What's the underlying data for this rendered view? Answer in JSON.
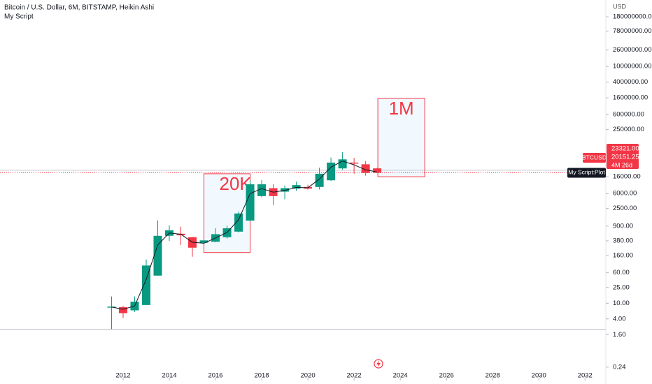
{
  "chart_data": {
    "type": "candlestick",
    "title": "Bitcoin / U.S. Dollar, 6M, BITSTAMP, Heikin Ashi",
    "subtitle": "My Script",
    "currency": "USD",
    "log_scale": true,
    "up_color": "#089981",
    "down_color": "#f23645",
    "x": [
      2011.5,
      2012.0,
      2012.5,
      2013.0,
      2013.5,
      2014.0,
      2014.5,
      2015.0,
      2015.5,
      2016.0,
      2016.5,
      2017.0,
      2017.5,
      2018.0,
      2018.5,
      2019.0,
      2019.5,
      2020.0,
      2020.5,
      2021.0,
      2021.5,
      2022.0,
      2022.5,
      2023.0
    ],
    "open": [
      8,
      7.9,
      6.6,
      9,
      50,
      509,
      575,
      470,
      340,
      360,
      470,
      650,
      1240,
      5170,
      8200,
      6700,
      8000,
      8800,
      8800,
      13000,
      26000,
      36500,
      33000,
      26000
    ],
    "high": [
      14.8,
      8.6,
      14.8,
      128,
      1250,
      940,
      870,
      480,
      420,
      790,
      920,
      2100,
      13000,
      13000,
      10500,
      9600,
      12000,
      10000,
      27000,
      49000,
      67000,
      48000,
      40000,
      27000
    ],
    "low": [
      2.2,
      4.2,
      6.0,
      9,
      50,
      380,
      300,
      150,
      310,
      350,
      430,
      620,
      1200,
      4800,
      3050,
      4300,
      7000,
      7600,
      7600,
      12500,
      24000,
      19000,
      17000,
      20000
    ],
    "close": [
      8.2,
      5.6,
      10.9,
      90,
      509,
      705,
      525,
      255,
      390,
      560,
      790,
      1875,
      10300,
      10300,
      5170,
      8200,
      9800,
      8000,
      19000,
      36500,
      44000,
      35500,
      20000,
      20151.25
    ],
    "series": [
      {
        "name": "My Script:Plot",
        "color": "#131722",
        "values": [
          8,
          7,
          8.5,
          40,
          300,
          600,
          560,
          350,
          330,
          450,
          620,
          1300,
          6000,
          8000,
          6500,
          7200,
          8600,
          8400,
          14000,
          28000,
          40000,
          32000,
          24000,
          21000
        ]
      }
    ],
    "xlim": [
      2006.67,
      2032.9
    ],
    "xticks": [
      2012,
      2014,
      2016,
      2018,
      2020,
      2022,
      2024,
      2026,
      2028,
      2030,
      2032
    ],
    "ylim": [
      0.11,
      480000000
    ],
    "yticks": [
      {
        "value": 180000000,
        "label": "180000000.00"
      },
      {
        "value": 78000000,
        "label": "78000000.00"
      },
      {
        "value": 26000000,
        "label": "26000000.00"
      },
      {
        "value": 10000000,
        "label": "10000000.00"
      },
      {
        "value": 4000000,
        "label": "4000000.00"
      },
      {
        "value": 1600000,
        "label": "1600000.00"
      },
      {
        "value": 600000,
        "label": "600000.00"
      },
      {
        "value": 250000,
        "label": "250000.00"
      },
      {
        "value": 16000,
        "label": "16000.00"
      },
      {
        "value": 6000,
        "label": "6000.00"
      },
      {
        "value": 2500,
        "label": "2500.00"
      },
      {
        "value": 900,
        "label": "900.00"
      },
      {
        "value": 380,
        "label": "380.00"
      },
      {
        "value": 160,
        "label": "160.00"
      },
      {
        "value": 60,
        "label": "60.00"
      },
      {
        "value": 25,
        "label": "25.00"
      },
      {
        "value": 10,
        "label": "10.00"
      },
      {
        "value": 4,
        "label": "4.00"
      },
      {
        "value": 1.6,
        "label": "1.60"
      },
      {
        "value": 0.24,
        "label": "0.24"
      }
    ],
    "annotations": [
      {
        "text": "20K",
        "x0": 2015.5,
        "x1": 2017.5,
        "y_top": 19000,
        "y_bottom": 192
      },
      {
        "text": "1M",
        "x0": 2023.03,
        "x1": 2025.06,
        "y_top": 1540000,
        "y_bottom": 16000
      }
    ],
    "symbol": "BTCUSD",
    "high_line": {
      "value": 23321,
      "label": "23321.00"
    },
    "last_price": {
      "value": 20151.25,
      "label": "20151.25"
    },
    "countdown": "4M 26d",
    "baseline": 2.2
  }
}
